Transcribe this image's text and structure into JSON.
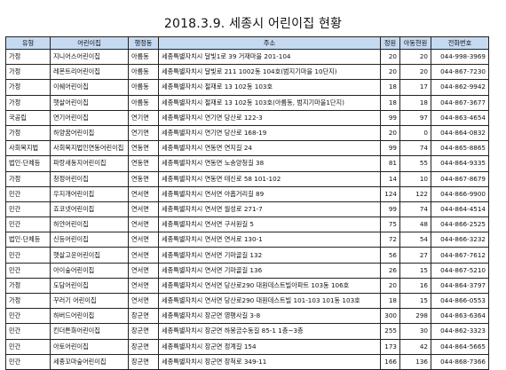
{
  "title": "2018.3.9. 세종시 어린이집 현황",
  "headers": [
    "유형",
    "어린이집",
    "행정동",
    "주소",
    "정원",
    "아동현원",
    "전화번호"
  ],
  "rows": [
    [
      "가정",
      "지니어스어린이집",
      "아름동",
      "세종특별자치시  달빛1로 39 거재마을 201-104",
      "20",
      "20",
      "044-998-3969"
    ],
    [
      "가정",
      "레몬트리어린이집",
      "아름동",
      "세종특별자치시  달빛로 211 1002동 104호(범지기마을 10단지)",
      "20",
      "20",
      "044-867-7230"
    ],
    [
      "가정",
      "이쉐어린이집",
      "아름동",
      "세종특별자치시  절재로 13 102동 103호",
      "18",
      "17",
      "044-862-9942"
    ],
    [
      "가정",
      "햇살어린이집",
      "아름동",
      "세종특별자치시  절재로 13 102동 103호(아름동, 범지기마을1단지)",
      "18",
      "18",
      "044-867-3677"
    ],
    [
      "국공립",
      "연기어린이집",
      "연기면",
      "세종특별자치시  연기면 당산로 122-3",
      "99",
      "97",
      "044-863-4654"
    ],
    [
      "가정",
      "하양꿈어린이집",
      "연기면",
      "세종특별자치시  연기면 당산로 168-19",
      "20",
      "0",
      "044-864-0832"
    ],
    [
      "사회복지법",
      "사회복지법인연동어린이집",
      "연동면",
      "세종특별자치시  연동면 연지길 24",
      "99",
      "74",
      "044-865-8865"
    ],
    [
      "법인·단체등",
      "파랑새동지어린이집",
      "연동면",
      "세종특별자치시  연동면 노송양청길 38",
      "81",
      "55",
      "044-864-9335"
    ],
    [
      "가정",
      "청정어린이집",
      "연동면",
      "세종특별자치시  연동면 테신로 58 101-102",
      "14",
      "10",
      "044-867-8679"
    ],
    [
      "민간",
      "우지개어린이집",
      "연서면",
      "세종특별자치시  연서면 아홉거리길 89",
      "124",
      "122",
      "044-866-9900"
    ],
    [
      "민간",
      "죠코넷어린이집",
      "연서면",
      "세종특별자치시  연서면 월성로 271-7",
      "99",
      "74",
      "044-864-4514"
    ],
    [
      "민간",
      "하얀어린이집",
      "연서면",
      "세종특별자치시  연서면 구서원길 5",
      "75",
      "48",
      "044-866-2525"
    ],
    [
      "법인·단체등",
      "신등어린이집",
      "연서면",
      "세종특별자치시  연서면 연서로 130-1",
      "72",
      "54",
      "044-866-3232"
    ],
    [
      "민간",
      "햇살고운어린이집",
      "연서면",
      "세종특별자치시  연서면 기마골길 132",
      "56",
      "27",
      "044-867-7612"
    ],
    [
      "민간",
      "아이숲어린이집",
      "연서면",
      "세종특별자치시  연서면 기마골길 136",
      "26",
      "15",
      "044-867-5210"
    ],
    [
      "가정",
      "도담어린이집",
      "연서면",
      "세종특별자치시  연서면 당산로290 대원데스트빌아파트 103동 106호",
      "20",
      "16",
      "044-864-3797"
    ],
    [
      "가정",
      "꾸러기 어린이집",
      "연서면",
      "세종특별자치시  연서면 당산로290 대원데스트빌 101-103 101동 103호",
      "18",
      "15",
      "044-866-0553"
    ],
    [
      "민간",
      "하버드어린이집",
      "장군면",
      "세종특별자치시  장군면 영평사길 3-8",
      "300",
      "298",
      "044-863-6364"
    ],
    [
      "민간",
      "킨더튼화어린이집",
      "장군면",
      "세종특별자치시  장군면 하봉금수동길 85-1 1층~3층",
      "255",
      "30",
      "044-862-3323"
    ],
    [
      "민간",
      "아토어린이집",
      "장군면",
      "세종특별자치시  장군면 정계길 154",
      "173",
      "42",
      "044-864-5665"
    ],
    [
      "민간",
      "세종꼬마숲어린이집",
      "장군면",
      "세종특별자치시  장군면 장척로 349-11",
      "166",
      "136",
      "044-868-7366"
    ]
  ]
}
